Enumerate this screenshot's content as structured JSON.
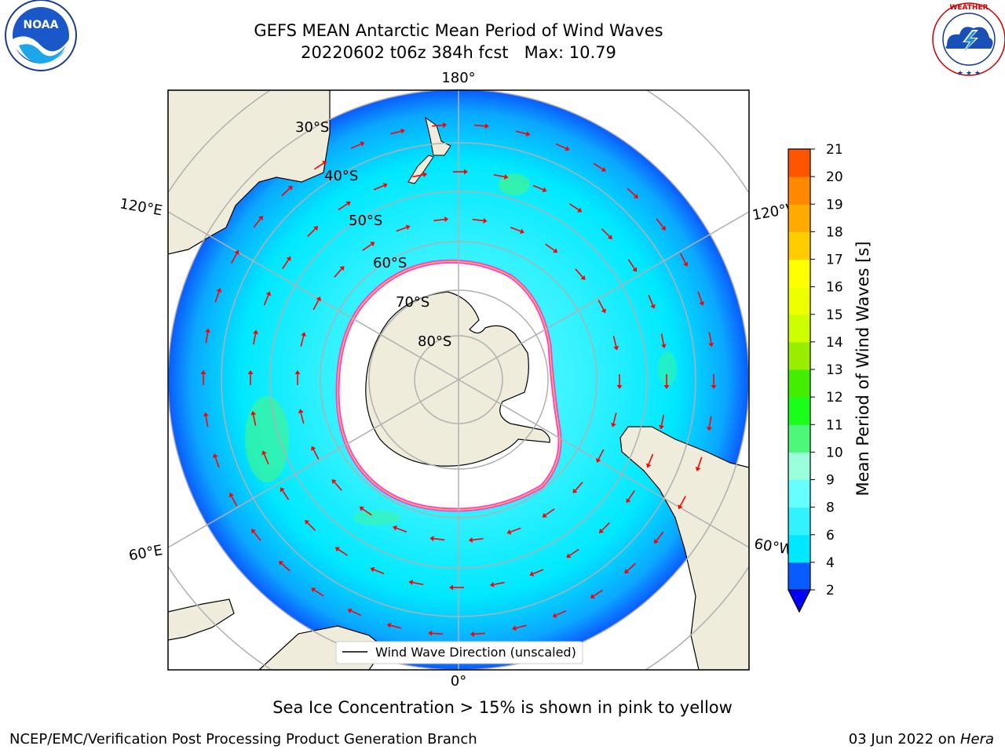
{
  "header": {
    "title_line1": "GEFS MEAN Antarctic Mean Period of Wind Waves",
    "title_line2": "20220602 t06z 384h fcst   Max: 10.79"
  },
  "logos": {
    "left": "noaa-logo",
    "left_text": "NOAA",
    "left_ring_text": "NATIONAL OCEANIC AND ATMOSPHERIC ADMINISTRATION · U.S. DEPARTMENT OF COMMERCE",
    "right": "nws-logo",
    "right_ring_text": "NATIONAL WEATHER SERVICE"
  },
  "map": {
    "projection": "south-polar-stereographic",
    "longitude_labels": {
      "top": "180°",
      "bottom": "0°",
      "upper_left": "120°E",
      "upper_right": "120°W",
      "lower_left": "60°E",
      "lower_right": "60°W"
    },
    "latitude_labels": [
      "30°S",
      "40°S",
      "50°S",
      "60°S",
      "70°S",
      "80°S"
    ],
    "colors": {
      "land": "#efecdc",
      "ice_interior": "#ffffff",
      "ice_edge": [
        "#ff33ff",
        "#ffaa00",
        "#ffff00"
      ],
      "arrow": "#ff0000",
      "gridline": "#b0b0b0"
    },
    "legend": "Wind Wave Direction (unscaled)"
  },
  "colorbar": {
    "label": "Mean Period of Wind Waves [s]",
    "ticks": [
      "2",
      "4",
      "6",
      "8",
      "9",
      "10",
      "11",
      "12",
      "13",
      "14",
      "15",
      "16",
      "17",
      "18",
      "19",
      "20",
      "21"
    ],
    "colors": [
      "#0a5bff",
      "#00e8ff",
      "#33f2ff",
      "#66ffff",
      "#99ffdd",
      "#4df77a",
      "#1aff1a",
      "#44ee00",
      "#99ee00",
      "#ccff00",
      "#eeff00",
      "#ffff00",
      "#ffcc00",
      "#ffaa00",
      "#ff8800",
      "#ff5500",
      "#ff2200",
      "#ff0000"
    ],
    "extend_color": "#0000ff"
  },
  "caption": "Sea Ice Concentration > 15% is shown in pink to yellow",
  "footer": {
    "left": "NCEP/EMC/Verification Post Processing Product Generation Branch",
    "right_prefix": "03 Jun 2022 on ",
    "right_host": "Hera"
  }
}
